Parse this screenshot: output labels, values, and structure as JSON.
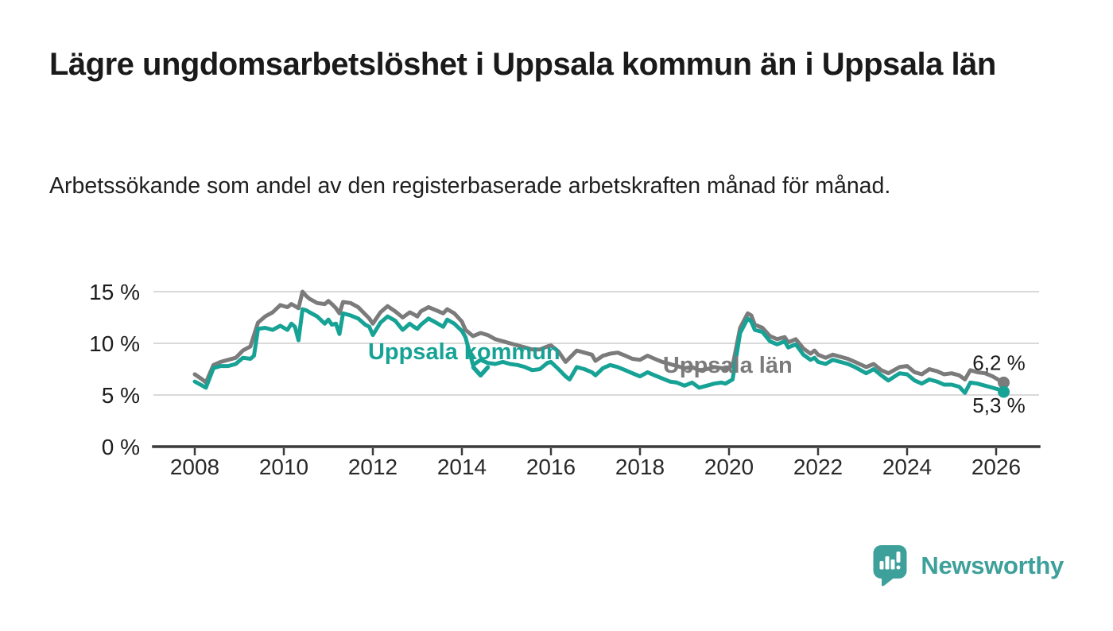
{
  "header": {
    "title": "Lägre ungdomsarbetslöshet i Uppsala kommun än i Uppsala län",
    "subtitle": "Arbetssökande som andel av den registerbaserade arbetskraften månad för månad."
  },
  "footer": {
    "brand": "Newsworthy",
    "logo_icon": "bar-chart-speech-bubble",
    "brand_color": "#3da09a"
  },
  "colors": {
    "kommun_line": "#17a296",
    "lan_line": "#7b7b7b",
    "grid": "#d9d9d9",
    "axis": "#3a3a3a",
    "tick_text": "#2a2a2a",
    "end_label_text": "#1a1a1a"
  },
  "chart_data": {
    "type": "line",
    "title": "",
    "xlabel": "",
    "ylabel": "",
    "grid": "horizontal",
    "ylim": [
      0,
      16.5
    ],
    "xlim": [
      2007.05,
      2026.95
    ],
    "yticks": [
      0,
      5,
      10,
      15
    ],
    "ytick_labels": [
      "0 %",
      "5 %",
      "10 %",
      "15 %"
    ],
    "xticks": [
      2008,
      2010,
      2012,
      2014,
      2016,
      2018,
      2020,
      2022,
      2024,
      2026
    ],
    "x": [
      2008.0,
      2008.17,
      2008.25,
      2008.42,
      2008.58,
      2008.75,
      2008.92,
      2009.08,
      2009.25,
      2009.33,
      2009.42,
      2009.58,
      2009.75,
      2009.92,
      2010.08,
      2010.17,
      2010.25,
      2010.33,
      2010.42,
      2010.5,
      2010.58,
      2010.75,
      2010.92,
      2011.0,
      2011.08,
      2011.17,
      2011.25,
      2011.33,
      2011.5,
      2011.67,
      2011.83,
      2011.92,
      2012.0,
      2012.17,
      2012.33,
      2012.5,
      2012.67,
      2012.83,
      2012.92,
      2013.0,
      2013.08,
      2013.25,
      2013.42,
      2013.58,
      2013.67,
      2013.83,
      2014.0,
      2014.08,
      2014.25,
      2014.42,
      2014.58,
      2014.75,
      2014.92,
      2015.08,
      2015.25,
      2015.42,
      2015.58,
      2015.75,
      2015.92,
      2016.0,
      2016.17,
      2016.33,
      2016.42,
      2016.58,
      2016.75,
      2016.92,
      2017.0,
      2017.17,
      2017.33,
      2017.5,
      2017.67,
      2017.83,
      2018.0,
      2018.17,
      2018.33,
      2018.5,
      2018.67,
      2018.83,
      2019.0,
      2019.17,
      2019.33,
      2019.5,
      2019.67,
      2019.83,
      2019.92,
      2020.08,
      2020.25,
      2020.42,
      2020.5,
      2020.58,
      2020.75,
      2020.92,
      2021.08,
      2021.25,
      2021.33,
      2021.5,
      2021.67,
      2021.83,
      2021.92,
      2022.0,
      2022.17,
      2022.33,
      2022.5,
      2022.67,
      2022.83,
      2023.08,
      2023.25,
      2023.42,
      2023.58,
      2023.83,
      2024.0,
      2024.17,
      2024.33,
      2024.5,
      2024.67,
      2024.83,
      2025.0,
      2025.17,
      2025.3,
      2025.42,
      2025.58,
      2025.75,
      2025.92,
      2026.08,
      2026.17
    ],
    "series": [
      {
        "name": "Uppsala län",
        "color": "#7b7b7b",
        "end_value": 6.2,
        "end_label": "6,2 %",
        "end_label_side": "above",
        "values": [
          7.0,
          6.5,
          6.2,
          7.9,
          8.2,
          8.4,
          8.6,
          9.3,
          9.7,
          10.8,
          12.0,
          12.6,
          13.0,
          13.7,
          13.5,
          13.8,
          13.6,
          13.4,
          15.0,
          14.6,
          14.3,
          13.9,
          13.8,
          14.1,
          13.8,
          13.4,
          12.9,
          14.0,
          13.9,
          13.5,
          12.8,
          12.4,
          11.9,
          13.0,
          13.6,
          13.1,
          12.5,
          13.0,
          12.8,
          12.6,
          13.1,
          13.5,
          13.2,
          12.9,
          13.3,
          12.9,
          12.1,
          11.3,
          10.7,
          11.0,
          10.8,
          10.4,
          10.2,
          10.0,
          9.8,
          9.6,
          9.4,
          9.4,
          9.7,
          9.8,
          9.2,
          8.2,
          8.6,
          9.3,
          9.1,
          8.9,
          8.3,
          8.8,
          9.0,
          9.1,
          8.8,
          8.5,
          8.4,
          8.8,
          8.5,
          8.2,
          8.0,
          7.8,
          7.6,
          7.7,
          7.4,
          7.5,
          7.7,
          7.6,
          7.5,
          7.8,
          11.5,
          12.9,
          12.7,
          11.8,
          11.5,
          10.7,
          10.4,
          10.6,
          10.1,
          10.4,
          9.5,
          9.0,
          9.3,
          8.9,
          8.6,
          8.9,
          8.7,
          8.5,
          8.2,
          7.7,
          8.0,
          7.4,
          7.1,
          7.7,
          7.8,
          7.2,
          7.0,
          7.5,
          7.3,
          7.0,
          7.1,
          6.9,
          6.5,
          7.4,
          7.2,
          7.1,
          6.8,
          6.4,
          6.2
        ]
      },
      {
        "name": "Uppsala kommun",
        "color": "#17a296",
        "end_value": 5.3,
        "end_label": "5,3 %",
        "end_label_side": "below",
        "values": [
          6.3,
          5.9,
          5.7,
          7.6,
          7.8,
          7.8,
          8.0,
          8.6,
          8.5,
          8.8,
          11.4,
          11.5,
          11.3,
          11.7,
          11.3,
          11.9,
          11.6,
          10.3,
          13.3,
          13.2,
          13.0,
          12.6,
          11.9,
          12.3,
          11.8,
          11.9,
          10.9,
          12.9,
          12.7,
          12.4,
          11.8,
          11.6,
          10.8,
          12.0,
          12.6,
          12.2,
          11.3,
          11.9,
          11.6,
          11.4,
          11.8,
          12.4,
          12.0,
          11.6,
          12.3,
          11.9,
          11.2,
          10.6,
          7.9,
          8.4,
          8.1,
          8.0,
          8.2,
          8.0,
          7.9,
          7.7,
          7.4,
          7.5,
          8.1,
          8.2,
          7.5,
          6.8,
          6.5,
          7.7,
          7.5,
          7.2,
          6.9,
          7.6,
          7.9,
          7.7,
          7.4,
          7.1,
          6.8,
          7.2,
          6.9,
          6.6,
          6.3,
          6.2,
          5.9,
          6.2,
          5.7,
          5.9,
          6.1,
          6.2,
          6.1,
          6.5,
          11.0,
          12.4,
          12.1,
          11.3,
          11.1,
          10.2,
          9.9,
          10.2,
          9.6,
          9.9,
          8.9,
          8.4,
          8.6,
          8.2,
          8.0,
          8.4,
          8.2,
          8.0,
          7.7,
          7.1,
          7.5,
          6.9,
          6.4,
          7.1,
          7.0,
          6.4,
          6.1,
          6.5,
          6.3,
          6.0,
          6.0,
          5.8,
          5.2,
          6.2,
          6.1,
          5.9,
          5.7,
          5.5,
          5.3
        ]
      }
    ],
    "annotations": [
      {
        "text": "Uppsala kommun",
        "x": 2014.05,
        "y": 8.45,
        "color": "#17a296",
        "arrow": {
          "x": 2014.42,
          "y": 6.9
        }
      },
      {
        "text": "Uppsala län",
        "x": 2019.97,
        "y": 7.15,
        "color": "#7b7b7b"
      }
    ]
  }
}
